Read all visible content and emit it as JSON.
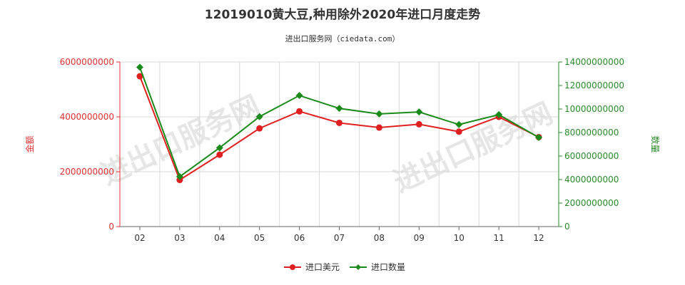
{
  "chart_data": {
    "type": "line",
    "title": "12019010黄大豆,种用除外2020年进口月度走势",
    "subtitle": "进出口服务网（ciedata.com）",
    "watermark": "进出口服务网",
    "categories": [
      "02",
      "03",
      "04",
      "05",
      "06",
      "07",
      "08",
      "09",
      "10",
      "11",
      "12"
    ],
    "y_left": {
      "label": "金额",
      "ticks": [
        "0",
        "2000000000",
        "4000000000",
        "6000000000"
      ],
      "range": [
        0,
        6000000000
      ],
      "color": "#e03030"
    },
    "y_right": {
      "label": "数量",
      "ticks": [
        "0",
        "2000000000",
        "4000000000",
        "6000000000",
        "8000000000",
        "10000000000",
        "12000000000",
        "14000000000"
      ],
      "range": [
        0,
        14000000000
      ],
      "color": "#2a8a2a"
    },
    "series": [
      {
        "name": "进口美元",
        "axis": "left",
        "color": "#e02020",
        "values": [
          5480000000,
          1700000000,
          2620000000,
          3580000000,
          4200000000,
          3780000000,
          3610000000,
          3730000000,
          3460000000,
          4000000000,
          3260000000
        ]
      },
      {
        "name": "进口数量",
        "axis": "right",
        "color": "#1a8a1a",
        "values": [
          13550000000,
          4250000000,
          6700000000,
          9350000000,
          11150000000,
          10050000000,
          9580000000,
          9750000000,
          8680000000,
          9520000000,
          7580000000
        ]
      }
    ],
    "legend_position": "bottom-center",
    "grid": true
  }
}
